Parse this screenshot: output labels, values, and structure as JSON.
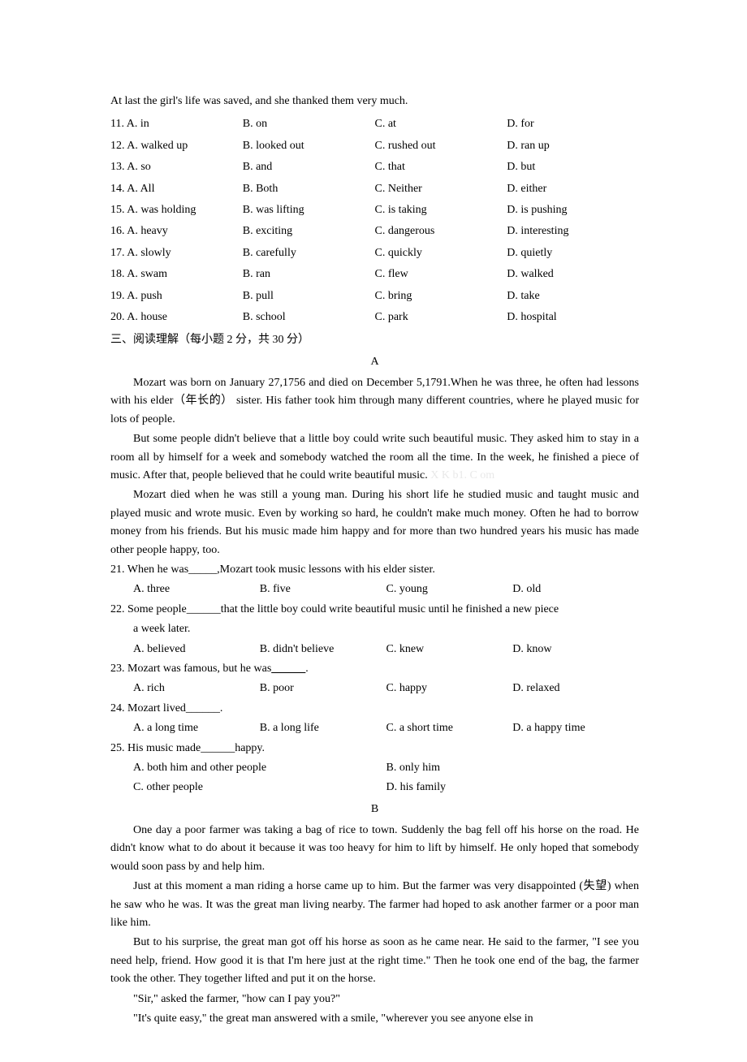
{
  "intro_line": "At last the girl's life was saved, and she thanked them very much.",
  "mc_rows": [
    {
      "num": "11.",
      "a": "A. in",
      "b": "B. on",
      "c": "C. at",
      "d": "D. for"
    },
    {
      "num": "12.",
      "a": "A. walked up",
      "b": "B. looked out",
      "c": "C. rushed out",
      "d": "D. ran up"
    },
    {
      "num": "13.",
      "a": "A. so",
      "b": "B. and",
      "c": "C. that",
      "d": "D. but"
    },
    {
      "num": "14.",
      "a": "A. All",
      "b": "B. Both",
      "c": "C. Neither",
      "d": "D. either"
    },
    {
      "num": "15.",
      "a": "A. was holding",
      "b": "B. was lifting",
      "c": "C. is taking",
      "d": "D. is pushing"
    },
    {
      "num": "16.",
      "a": "A. heavy",
      "b": "B. exciting",
      "c": "C. dangerous",
      "d": "D. interesting"
    },
    {
      "num": "17.",
      "a": "A. slowly",
      "b": "B. carefully",
      "c": "C. quickly",
      "d": "D. quietly"
    },
    {
      "num": "18.",
      "a": "A. swam",
      "b": "B. ran",
      "c": "C. flew",
      "d": "D. walked"
    },
    {
      "num": "19.",
      "a": "A. push",
      "b": "B. pull",
      "c": "C. bring",
      "d": "D. take"
    },
    {
      "num": "20.",
      "a": "A. house",
      "b": "B. school",
      "c": "C. park",
      "d": "D. hospital"
    }
  ],
  "section_heading": "三、阅读理解（每小题 2 分，共 30 分）",
  "label_a": "A",
  "passage_a_p1": "Mozart was born on January 27,1756 and died on December 5,1791.When he was three, he often had lessons with his elder（年长的） sister. His father took him through many different countries, where he played music for lots of people.",
  "passage_a_p2_pre": "But some people didn't believe that a little boy could write such beautiful music. They asked him to stay in a room all by himself for a week and somebody watched the room all the time. In the week, he finished a piece of music. After that, people believed that he could write beautiful music.",
  "passage_a_p2_watermark": " X   K b1. C om",
  "passage_a_p3": "Mozart died when he was still a young man. During his short life he studied music and taught music and played music and wrote music. Even by working so hard, he couldn't make much money. Often he had to borrow money from his friends. But his music made him happy and for more than two hundred years his music has made other people happy, too.",
  "q21_stem_pre": "21. When he was",
  "q21_stem_post": ",Mozart took music lessons with his elder sister.",
  "q21_opts": {
    "a": "A. three",
    "b": "B. five",
    "c": "C. young",
    "d": "D. old"
  },
  "q22_stem_pre": "22. Some people",
  "q22_stem_post": "that the little boy could write beautiful music until he finished a new piece",
  "q22_line2": "a week later.",
  "q22_opts": {
    "a": "A. believed",
    "b": "B. didn't believe",
    "c": "C. knew",
    "d": "D. know"
  },
  "q23_stem_pre": "23. Mozart was famous, but he was",
  "q23_stem_post": ".",
  "q23_opts": {
    "a": "A. rich",
    "b": "B. poor",
    "c": "C. happy",
    "d": "D. relaxed"
  },
  "q24_stem_pre": "24. Mozart lived",
  "q24_stem_post": ".",
  "q24_opts": {
    "a": "A. a long time",
    "b": "B. a long life",
    "c": "C. a short time",
    "d": "D. a happy time"
  },
  "q25_stem_pre": "25. His music made",
  "q25_stem_post": "happy.",
  "q25_opts": {
    "a": "A.   both him and other people",
    "b": "B. only him",
    "c": "C. other people",
    "d": "D. his family"
  },
  "label_b": "B",
  "passage_b_p1": "One day a poor farmer was taking a bag of rice to town. Suddenly the bag fell off his horse on the road. He didn't know what to do about it because it was too heavy for him to lift by himself. He only hoped that somebody would soon pass by and help him.",
  "passage_b_p2": "Just at this moment a man riding a horse came up to him. But the farmer was very disappointed (失望) when he saw who he was. It was the great man living nearby. The farmer had hoped to ask another farmer or a poor man like him.",
  "passage_b_p3": "But to his surprise, the great man got off his horse as soon as he came near. He said to the farmer, \"I see you need help, friend. How good it is that I'm here just at the right time.\" Then he took one end of the bag, the farmer took the other. They together lifted and put it on the horse.",
  "passage_b_p4": "\"Sir,\" asked the farmer, \"how can I pay you?\"",
  "passage_b_p5": "\"It's quite easy,\" the great man answered with a smile, \"wherever you see anyone else in",
  "blank": "_____",
  "blank_u": "______"
}
